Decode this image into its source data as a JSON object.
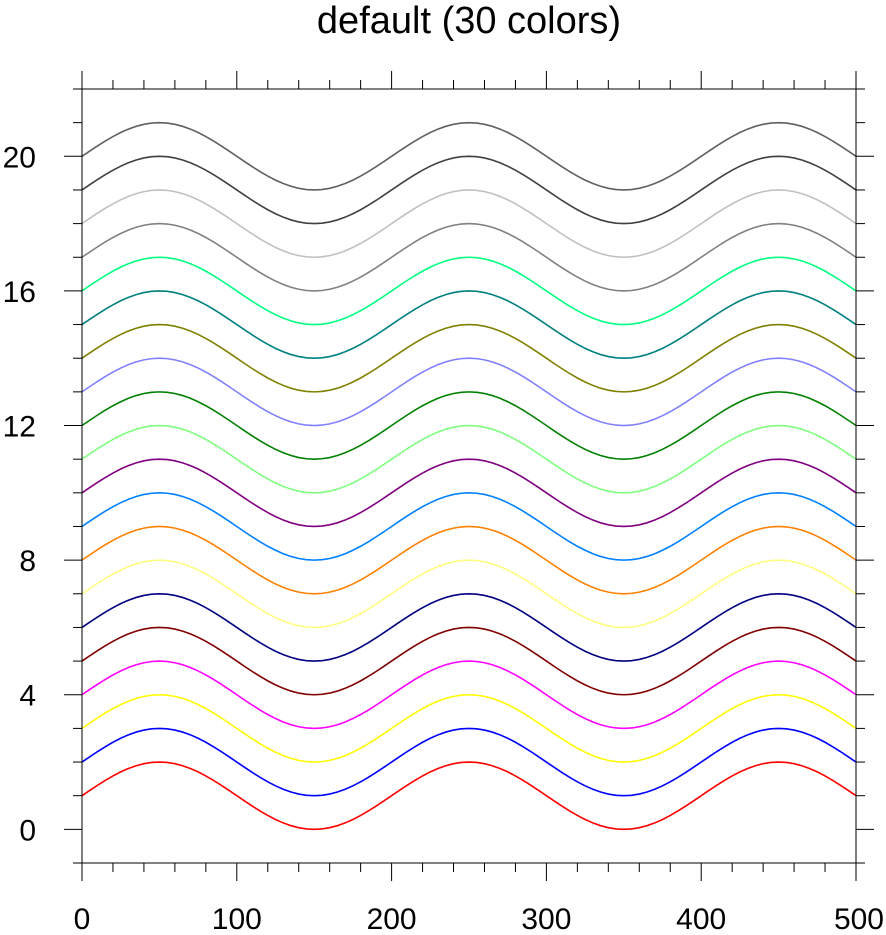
{
  "chart_data": {
    "type": "line",
    "title": "default (30 colors)",
    "xlabel": "",
    "ylabel": "",
    "xlim": [
      0,
      500
    ],
    "ylim": [
      -1,
      22
    ],
    "x_ticks": [
      0,
      100,
      200,
      300,
      400,
      500
    ],
    "y_ticks": [
      0,
      4,
      8,
      12,
      16,
      20
    ],
    "x_tick_labels": [
      "0",
      "100",
      "200",
      "300",
      "400",
      "500"
    ],
    "y_tick_labels": [
      "0",
      "4",
      "8",
      "12",
      "16",
      "20"
    ],
    "grid": false,
    "legend": "none",
    "curve": {
      "function": "sine",
      "amplitude": 1,
      "period": 200,
      "peak_x": 50,
      "x_step": 5
    },
    "series": [
      {
        "offset": 1,
        "color": "#ff0000"
      },
      {
        "offset": 2,
        "color": "#0000ff"
      },
      {
        "offset": 3,
        "color": "#ffff00"
      },
      {
        "offset": 4,
        "color": "#ff00ff"
      },
      {
        "offset": 5,
        "color": "#800000"
      },
      {
        "offset": 6,
        "color": "#000080"
      },
      {
        "offset": 7,
        "color": "#ffff80"
      },
      {
        "offset": 8,
        "color": "#ff8000"
      },
      {
        "offset": 9,
        "color": "#0080ff"
      },
      {
        "offset": 10,
        "color": "#800080"
      },
      {
        "offset": 11,
        "color": "#80ff80"
      },
      {
        "offset": 12,
        "color": "#008000"
      },
      {
        "offset": 13,
        "color": "#8080ff"
      },
      {
        "offset": 14,
        "color": "#808000"
      },
      {
        "offset": 15,
        "color": "#008080"
      },
      {
        "offset": 16,
        "color": "#00ff80"
      },
      {
        "offset": 17,
        "color": "#808080"
      },
      {
        "offset": 18,
        "color": "#c0c0c0"
      },
      {
        "offset": 19,
        "color": "#404040"
      },
      {
        "offset": 20,
        "color": "#606060"
      }
    ]
  }
}
